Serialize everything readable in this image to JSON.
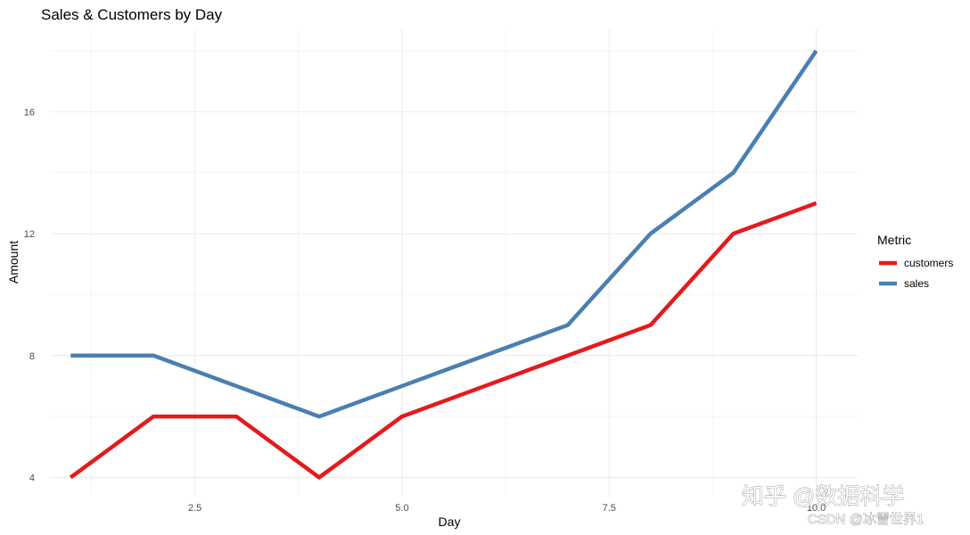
{
  "chart_data": {
    "type": "line",
    "title": "Sales & Customers by Day",
    "xlabel": "Day",
    "ylabel": "Amount",
    "x": [
      1,
      2,
      3,
      4,
      5,
      6,
      7,
      8,
      9,
      10
    ],
    "series": [
      {
        "name": "customers",
        "color": "#e41a1c",
        "values": [
          4,
          6,
          6,
          4,
          6,
          7,
          8,
          9,
          12,
          13
        ]
      },
      {
        "name": "sales",
        "color": "#4a7fb0",
        "values": [
          8,
          8,
          7,
          6,
          7,
          8,
          9,
          12,
          14,
          18
        ]
      }
    ],
    "xlim": [
      0.75,
      10.5
    ],
    "ylim": [
      3.4,
      18.7
    ],
    "x_ticks": [
      2.5,
      5.0,
      7.5,
      10.0
    ],
    "x_tick_labels": [
      "2.5",
      "5.0",
      "7.5",
      "10.0"
    ],
    "y_ticks": [
      4,
      8,
      12,
      16
    ],
    "y_tick_labels": [
      "4",
      "8",
      "12",
      "16"
    ],
    "grid": true,
    "legend": {
      "title": "Metric",
      "position": "right"
    }
  },
  "watermark": {
    "line1": "知乎 @数据科学",
    "line2": "CSDN @冰雪世界1"
  }
}
